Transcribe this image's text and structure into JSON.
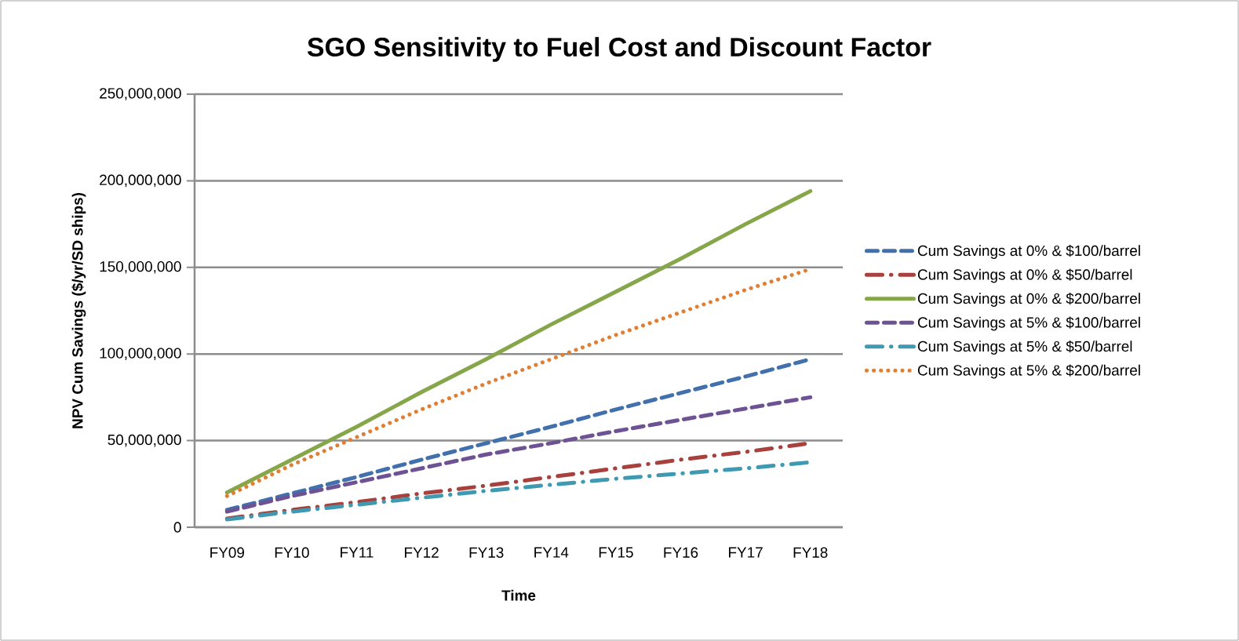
{
  "chart_data": {
    "type": "line",
    "title": "SGO Sensitivity to Fuel Cost and Discount Factor",
    "xlabel": "Time",
    "ylabel": "NPV Cum Savings ($/yr/SD ships)",
    "categories": [
      "FY09",
      "FY10",
      "FY11",
      "FY12",
      "FY13",
      "FY14",
      "FY15",
      "FY16",
      "FY17",
      "FY18"
    ],
    "series": [
      {
        "name": "Cum Savings at 0% & $100/barrel",
        "color": "#4170ac",
        "line_style": "dashed",
        "values": [
          10000000,
          19500000,
          29000000,
          39000000,
          48500000,
          58000000,
          68000000,
          77500000,
          87000000,
          97000000
        ]
      },
      {
        "name": "Cum Savings at 0% & $50/barrel",
        "color": "#a8403d",
        "line_style": "dashdot",
        "values": [
          5000000,
          10000000,
          14500000,
          19500000,
          24000000,
          29000000,
          34000000,
          39000000,
          43500000,
          48500000
        ]
      },
      {
        "name": "Cum Savings at 0% & $200/barrel",
        "color": "#86a64a",
        "line_style": "solid",
        "values": [
          20000000,
          39000000,
          58000000,
          78000000,
          97000000,
          117000000,
          136000000,
          155000000,
          175000000,
          194000000
        ]
      },
      {
        "name": "Cum Savings at 5% & $100/barrel",
        "color": "#6e5394",
        "line_style": "dashed",
        "values": [
          9000000,
          18000000,
          26000000,
          34000000,
          42000000,
          48500000,
          55500000,
          62000000,
          68500000,
          75000000
        ]
      },
      {
        "name": "Cum Savings at 5% & $50/barrel",
        "color": "#3f9ab1",
        "line_style": "dashdot",
        "values": [
          4500000,
          9000000,
          13000000,
          17000000,
          21000000,
          24500000,
          28000000,
          31000000,
          34000000,
          37500000
        ]
      },
      {
        "name": "Cum Savings at 5% & $200/barrel",
        "color": "#e07f33",
        "line_style": "dotted",
        "values": [
          18000000,
          36000000,
          52000000,
          68000000,
          83000000,
          97000000,
          111000000,
          124000000,
          137000000,
          149000000
        ]
      }
    ],
    "ylim": [
      0,
      250000000
    ],
    "yticks": [
      {
        "value": 0,
        "label": "0"
      },
      {
        "value": 50000000,
        "label": "50,000,000"
      },
      {
        "value": 100000000,
        "label": "100,000,000"
      },
      {
        "value": 150000000,
        "label": "150,000,000"
      },
      {
        "value": 200000000,
        "label": "200,000,000"
      },
      {
        "value": 250000000,
        "label": "250,000,000"
      }
    ],
    "grid": "y",
    "legend": "right"
  }
}
